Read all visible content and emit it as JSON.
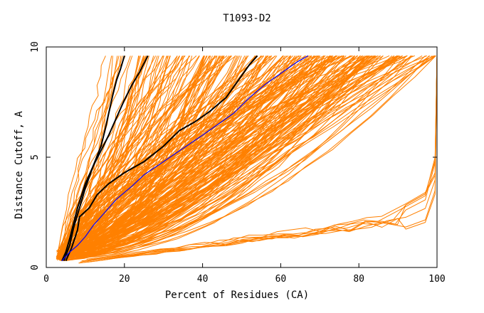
{
  "chart_data": {
    "type": "line",
    "title": "T1093-D2",
    "xlabel": "Percent of Residues (CA)",
    "ylabel": "Distance Cutoff, A",
    "xlim": [
      0,
      100
    ],
    "ylim": [
      0,
      10
    ],
    "x_ticks": [
      0,
      20,
      40,
      60,
      80,
      100
    ],
    "y_ticks": [
      0,
      5,
      10
    ],
    "grid": false,
    "legend": "none",
    "colors": {
      "background_series": "#ff8000",
      "highlight_black": "#000000",
      "highlight_blue": "#0000ff"
    },
    "background_series_count": 260,
    "highlight_series": [
      {
        "color": "#000000",
        "points": [
          [
            4,
            0.3
          ],
          [
            5,
            0.7
          ],
          [
            6,
            1.3
          ],
          [
            7,
            2.0
          ],
          [
            8,
            2.7
          ],
          [
            10,
            3.8
          ],
          [
            12,
            4.6
          ],
          [
            14,
            5.5
          ],
          [
            15,
            6.2
          ],
          [
            16,
            7.0
          ],
          [
            17,
            7.8
          ],
          [
            18,
            8.5
          ],
          [
            19,
            9.0
          ],
          [
            20,
            9.6
          ]
        ]
      },
      {
        "color": "#000000",
        "points": [
          [
            4.5,
            0.3
          ],
          [
            6,
            1.0
          ],
          [
            7,
            1.8
          ],
          [
            8.5,
            2.7
          ],
          [
            10,
            3.6
          ],
          [
            12,
            4.6
          ],
          [
            14,
            5.3
          ],
          [
            16,
            6.0
          ],
          [
            18,
            6.8
          ],
          [
            20,
            7.6
          ],
          [
            22,
            8.3
          ],
          [
            24,
            8.9
          ],
          [
            26,
            9.6
          ]
        ]
      },
      {
        "color": "#000000",
        "points": [
          [
            5,
            0.3
          ],
          [
            6.5,
            0.9
          ],
          [
            8,
            1.7
          ],
          [
            8.5,
            2.3
          ],
          [
            11,
            2.7
          ],
          [
            13,
            3.3
          ],
          [
            16,
            3.8
          ],
          [
            20,
            4.3
          ],
          [
            25,
            4.8
          ],
          [
            30,
            5.5
          ],
          [
            34,
            6.2
          ],
          [
            38,
            6.6
          ],
          [
            42,
            7.1
          ],
          [
            46,
            7.7
          ],
          [
            48,
            8.2
          ],
          [
            50,
            8.7
          ],
          [
            52,
            9.2
          ],
          [
            54,
            9.6
          ]
        ]
      },
      {
        "color": "#0000ff",
        "points": [
          [
            4,
            0.3
          ],
          [
            6,
            0.7
          ],
          [
            8,
            1.0
          ],
          [
            10,
            1.4
          ],
          [
            12,
            1.9
          ],
          [
            15,
            2.5
          ],
          [
            18,
            3.1
          ],
          [
            22,
            3.7
          ],
          [
            25,
            4.2
          ],
          [
            30,
            4.8
          ],
          [
            35,
            5.4
          ],
          [
            40,
            6.0
          ],
          [
            44,
            6.5
          ],
          [
            48,
            7.0
          ],
          [
            52,
            7.7
          ],
          [
            56,
            8.3
          ],
          [
            60,
            8.8
          ],
          [
            64,
            9.3
          ],
          [
            67,
            9.6
          ]
        ]
      }
    ]
  }
}
